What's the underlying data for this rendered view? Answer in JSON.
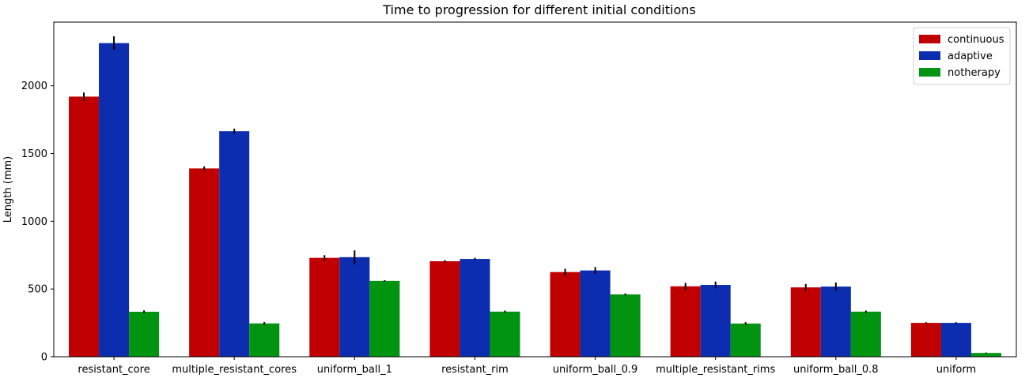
{
  "chart_data": {
    "type": "bar",
    "title": "Time to progression for different initial conditions",
    "xlabel": "",
    "ylabel": "Length (mm)",
    "ylim": [
      0,
      2470
    ],
    "yticks": [
      0,
      500,
      1000,
      1500,
      2000
    ],
    "grid": false,
    "legend_position": "top-right",
    "categories": [
      "resistant_core",
      "multiple_resistant_cores",
      "uniform_ball_1",
      "resistant_rim",
      "uniform_ball_0.9",
      "multiple_resistant_rims",
      "uniform_ball_0.8",
      "uniform"
    ],
    "series": [
      {
        "name": "continuous",
        "color": "#c00000",
        "values": [
          1920,
          1390,
          730,
          705,
          625,
          520,
          512,
          250
        ],
        "errors": [
          30,
          15,
          20,
          8,
          25,
          25,
          25,
          5
        ]
      },
      {
        "name": "adaptive",
        "color": "#0c2db0",
        "values": [
          2315,
          1665,
          735,
          722,
          637,
          530,
          518,
          250
        ],
        "errors": [
          50,
          18,
          50,
          8,
          25,
          25,
          30,
          5
        ]
      },
      {
        "name": "notherapy",
        "color": "#009410",
        "values": [
          332,
          246,
          560,
          333,
          460,
          245,
          333,
          28
        ],
        "errors": [
          10,
          10,
          5,
          8,
          7,
          10,
          8,
          3
        ]
      }
    ]
  }
}
